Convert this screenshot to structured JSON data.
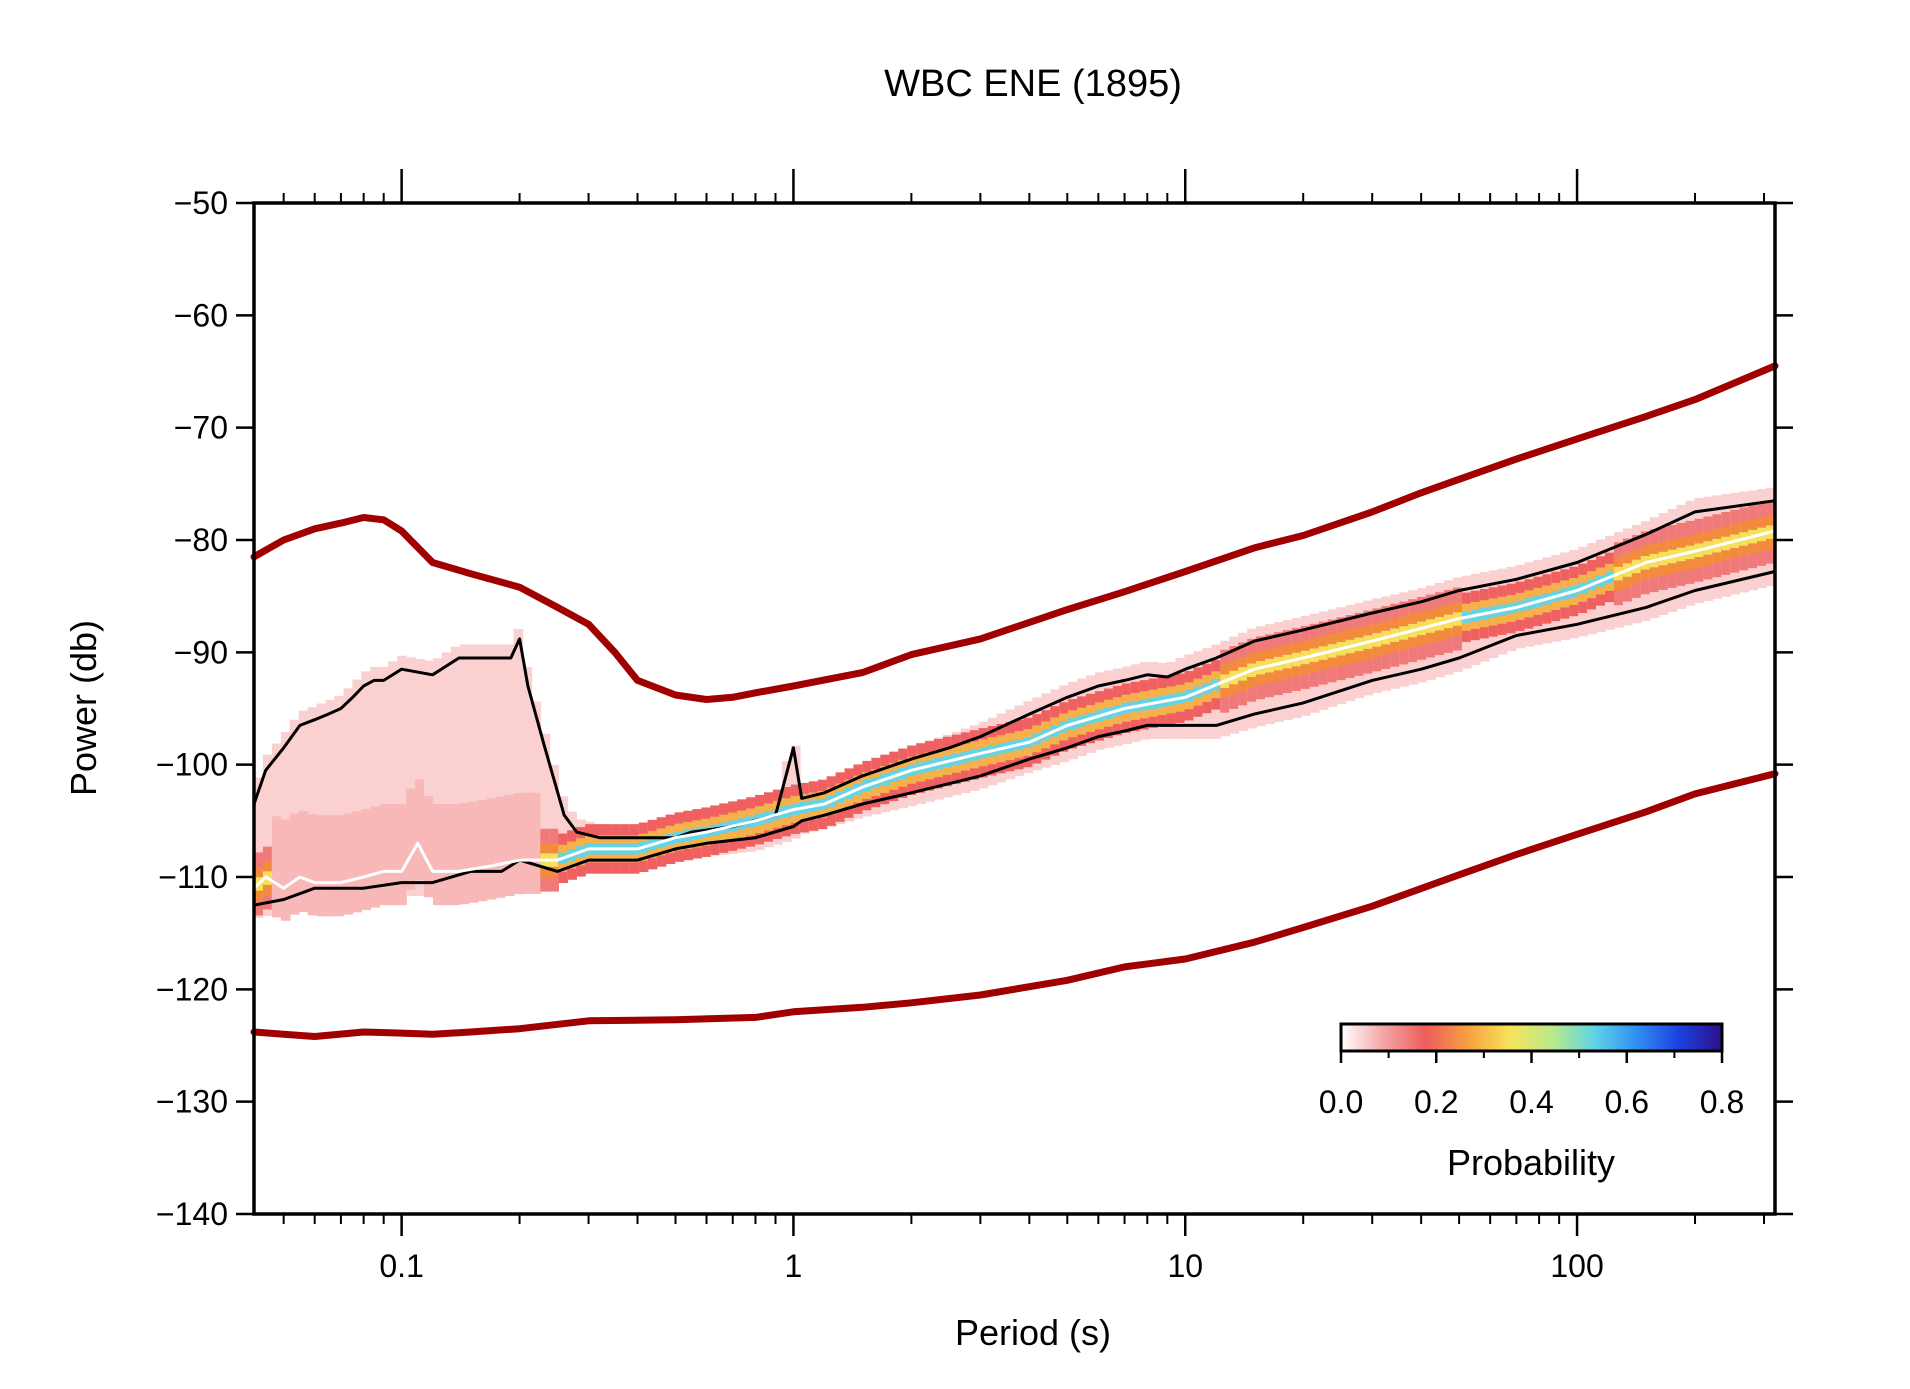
{
  "chart_data": {
    "type": "line",
    "title": "WBC ENE (1895)",
    "xlabel": "Period (s)",
    "ylabel": "Power (db)",
    "x_scale": "log",
    "xlim": [
      0.042,
      320
    ],
    "ylim": [
      -140,
      -50
    ],
    "x_ticks": [
      0.1,
      1,
      10,
      100
    ],
    "x_tick_labels": [
      "0.1",
      "1",
      "10",
      "100"
    ],
    "y_ticks": [
      -50,
      -60,
      -70,
      -80,
      -90,
      -100,
      -110,
      -120,
      -130,
      -140
    ],
    "y_tick_labels": [
      "−50",
      "−60",
      "−70",
      "−80",
      "−90",
      "−100",
      "−110",
      "−120",
      "−130",
      "−140"
    ],
    "grid": false,
    "colorbar": {
      "label": "Probability",
      "ticks": [
        0.0,
        0.2,
        0.4,
        0.6,
        0.8
      ],
      "tick_labels": [
        "0.0",
        "0.2",
        "0.4",
        "0.6",
        "0.8"
      ],
      "colors": [
        "#ffffff",
        "#f4a6a6",
        "#ee5c5c",
        "#f6a040",
        "#f7e35a",
        "#b8ea8a",
        "#5ed2e8",
        "#2f8ef0",
        "#1c3fe0",
        "#2a1088"
      ],
      "placement": "bottom-right"
    },
    "series": [
      {
        "color": "#a00000",
        "style": "thick",
        "x": [
          0.042,
          0.05,
          0.06,
          0.07,
          0.08,
          0.09,
          0.1,
          0.12,
          0.15,
          0.2,
          0.25,
          0.3,
          0.35,
          0.4,
          0.5,
          0.6,
          0.7,
          0.8,
          1,
          1.5,
          2,
          3,
          5,
          7,
          10,
          15,
          20,
          30,
          40,
          50,
          70,
          100,
          150,
          200,
          320
        ],
        "values": [
          -81.5,
          -80.0,
          -79.0,
          -78.5,
          -78.0,
          -78.2,
          -79.2,
          -82.0,
          -83.0,
          -84.2,
          -86.0,
          -87.5,
          -90.0,
          -92.5,
          -93.8,
          -94.2,
          -94.0,
          -93.6,
          -93.0,
          -91.8,
          -90.2,
          -88.8,
          -86.2,
          -84.6,
          -82.8,
          -80.7,
          -79.6,
          -77.5,
          -75.8,
          -74.6,
          -72.8,
          -71.0,
          -69.0,
          -67.5,
          -64.5
        ]
      },
      {
        "color": "#a00000",
        "style": "thick",
        "x": [
          0.042,
          0.05,
          0.06,
          0.08,
          0.1,
          0.12,
          0.15,
          0.2,
          0.3,
          0.5,
          0.8,
          1,
          1.5,
          2,
          3,
          5,
          7,
          10,
          15,
          20,
          30,
          50,
          70,
          100,
          150,
          200,
          320
        ],
        "values": [
          -123.8,
          -124.0,
          -124.2,
          -123.8,
          -123.9,
          -124.0,
          -123.8,
          -123.5,
          -122.8,
          -122.7,
          -122.5,
          -122.0,
          -121.6,
          -121.2,
          -120.5,
          -119.2,
          -118.0,
          -117.3,
          -115.8,
          -114.5,
          -112.6,
          -109.8,
          -108.0,
          -106.2,
          -104.2,
          -102.6,
          -100.8
        ]
      },
      {
        "color": "#000000",
        "style": "thin",
        "x": [
          0.042,
          0.045,
          0.05,
          0.055,
          0.06,
          0.065,
          0.07,
          0.075,
          0.08,
          0.085,
          0.09,
          0.1,
          0.12,
          0.14,
          0.16,
          0.18,
          0.19,
          0.2,
          0.21,
          0.23,
          0.26,
          0.28,
          0.32,
          0.36,
          0.4,
          0.5,
          0.55,
          0.7,
          0.9,
          1.0,
          1.05,
          1.2,
          1.5,
          2,
          2.5,
          3,
          4,
          5,
          6,
          7,
          8,
          9,
          10,
          12,
          15,
          20,
          30,
          40,
          50,
          70,
          100,
          150,
          200,
          320
        ],
        "values": [
          -103.5,
          -100.5,
          -98.5,
          -96.5,
          -96.0,
          -95.5,
          -95.0,
          -94.0,
          -93.0,
          -92.5,
          -92.5,
          -91.5,
          -92.0,
          -90.5,
          -90.5,
          -90.5,
          -90.5,
          -88.8,
          -93.0,
          -98.0,
          -104.5,
          -106.0,
          -106.5,
          -106.5,
          -106.5,
          -106.5,
          -106.0,
          -105.5,
          -104.5,
          -98.5,
          -103.0,
          -102.5,
          -101.0,
          -99.5,
          -98.5,
          -97.5,
          -95.5,
          -94.0,
          -93.0,
          -92.5,
          -92.0,
          -92.2,
          -91.5,
          -90.5,
          -89.0,
          -88.0,
          -86.5,
          -85.5,
          -84.5,
          -83.5,
          -82.0,
          -79.5,
          -77.5,
          -76.5
        ]
      },
      {
        "color": "#000000",
        "style": "thin",
        "x": [
          0.042,
          0.05,
          0.06,
          0.08,
          0.1,
          0.12,
          0.15,
          0.18,
          0.2,
          0.25,
          0.3,
          0.35,
          0.4,
          0.5,
          0.6,
          0.8,
          1.0,
          1.05,
          1.2,
          1.5,
          2,
          3,
          4,
          5,
          6,
          7,
          8,
          10,
          12,
          15,
          20,
          30,
          40,
          50,
          70,
          100,
          150,
          200,
          320
        ],
        "values": [
          -112.5,
          -112.0,
          -111.0,
          -111.0,
          -110.5,
          -110.5,
          -109.5,
          -109.5,
          -108.5,
          -109.5,
          -108.5,
          -108.5,
          -108.5,
          -107.5,
          -107.0,
          -106.5,
          -105.5,
          -105.0,
          -104.5,
          -103.5,
          -102.5,
          -101.0,
          -99.5,
          -98.5,
          -97.5,
          -97.0,
          -96.5,
          -96.5,
          -96.5,
          -95.5,
          -94.5,
          -92.5,
          -91.5,
          -90.5,
          -88.5,
          -87.5,
          -86.0,
          -84.5,
          -82.8
        ]
      },
      {
        "color": "#ffffff",
        "style": "thin",
        "x": [
          0.042,
          0.045,
          0.05,
          0.055,
          0.06,
          0.07,
          0.08,
          0.09,
          0.1,
          0.11,
          0.12,
          0.14,
          0.17,
          0.2,
          0.25,
          0.3,
          0.35,
          0.4,
          0.5,
          0.6,
          0.8,
          1.0,
          1.2,
          1.5,
          2,
          3,
          4,
          5,
          7,
          10,
          15,
          20,
          30,
          50,
          70,
          100,
          150,
          200,
          320
        ],
        "values": [
          -111.0,
          -110.0,
          -111.0,
          -110.0,
          -110.5,
          -110.5,
          -110.0,
          -109.5,
          -109.5,
          -107.0,
          -109.5,
          -109.5,
          -109.0,
          -108.5,
          -108.5,
          -107.5,
          -107.5,
          -107.5,
          -106.5,
          -106.0,
          -105.0,
          -104.0,
          -103.5,
          -102.0,
          -100.5,
          -99.0,
          -98.0,
          -96.5,
          -95.0,
          -94.0,
          -91.5,
          -90.5,
          -89.0,
          -87.0,
          -86.0,
          -84.5,
          -82.0,
          -81.0,
          -79.2
        ]
      }
    ]
  }
}
